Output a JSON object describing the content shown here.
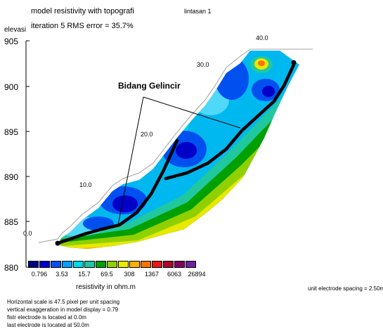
{
  "header": {
    "line1": "model resistivity with topografi",
    "line2": "iteration 5 RMS error = 35.7%",
    "line_name": "lintasan 1",
    "yaxis_title": "elevasi"
  },
  "annotation": {
    "label": "Bidang Gelincir"
  },
  "colorbar": {
    "label": "resistivity in ohm.m",
    "values": [
      "0.796",
      "3.53",
      "15.7",
      "69.5",
      "308",
      "1367",
      "6063",
      "26894"
    ],
    "colors": [
      "#000080",
      "#0000c8",
      "#0050f0",
      "#00a0ff",
      "#00d8e8",
      "#20c8a0",
      "#00a000",
      "#90d000",
      "#e8e800",
      "#ffb000",
      "#ff7000",
      "#e81818",
      "#b00030",
      "#800060",
      "#7020a0"
    ]
  },
  "footer": {
    "spacing": "unit electrode spacing = 2.50m",
    "notes": [
      "Horizontal scale is 47.5 pixel per unit spacing",
      "vertical exaggeration in model display = 0.79",
      "fistr electrode is located at 0.0m",
      "last electrode is located at 50.0m"
    ]
  },
  "chart_data": {
    "type": "heatmap",
    "title": "model resistivity with topografi",
    "ylabel": "elevasi",
    "yticks": [
      "905",
      "900",
      "895",
      "890",
      "885",
      "880"
    ],
    "ylim": [
      880,
      905
    ],
    "distance_labels": [
      "0.0",
      "10.0",
      "20.0",
      "30.0",
      "40.0"
    ],
    "xlim": [
      0,
      50
    ],
    "scale": "log",
    "units": "ohm.m"
  }
}
